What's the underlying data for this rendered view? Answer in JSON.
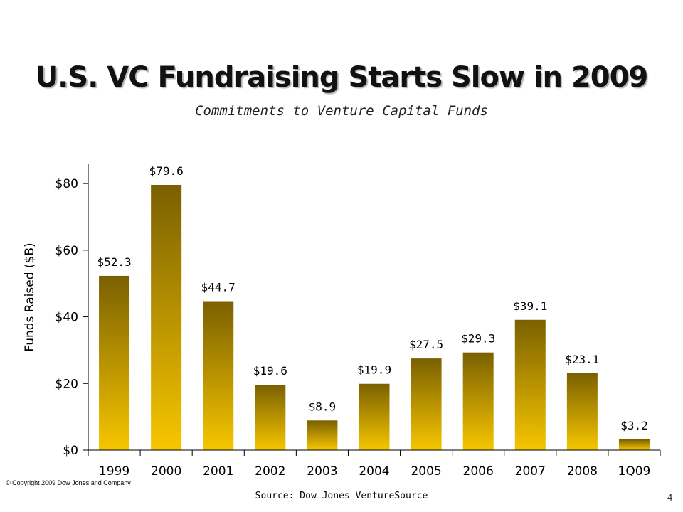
{
  "chart_data": {
    "type": "bar",
    "title": "U.S. VC Fundraising Starts Slow in 2009",
    "subtitle": "Commitments to Venture Capital Funds",
    "xlabel": "",
    "ylabel": "Funds Raised ($B)",
    "categories": [
      "1999",
      "2000",
      "2001",
      "2002",
      "2003",
      "2004",
      "2005",
      "2006",
      "2007",
      "2008",
      "1Q09"
    ],
    "values": [
      52.3,
      79.6,
      44.7,
      19.6,
      8.9,
      19.9,
      27.5,
      29.3,
      39.1,
      23.1,
      3.2
    ],
    "data_labels": [
      "$52.3",
      "$79.6",
      "$44.7",
      "$19.6",
      "$8.9",
      "$19.9",
      "$27.5",
      "$29.3",
      "$39.1",
      "$23.1",
      "$3.2"
    ],
    "ylim": [
      0,
      86
    ],
    "yticks": [
      0,
      20,
      40,
      60,
      80
    ],
    "ytick_labels": [
      "$0",
      "$20",
      "$40",
      "$60",
      "$80"
    ],
    "grid": false,
    "legend": "none",
    "colors": {
      "bar_top": "#7a6000",
      "bar_bottom": "#f7c600",
      "axis": "#000000"
    }
  },
  "footer": {
    "copyright": "© Copyright 2009 Dow Jones and Company",
    "source": "Source: Dow Jones VentureSource",
    "page_number": "4"
  }
}
